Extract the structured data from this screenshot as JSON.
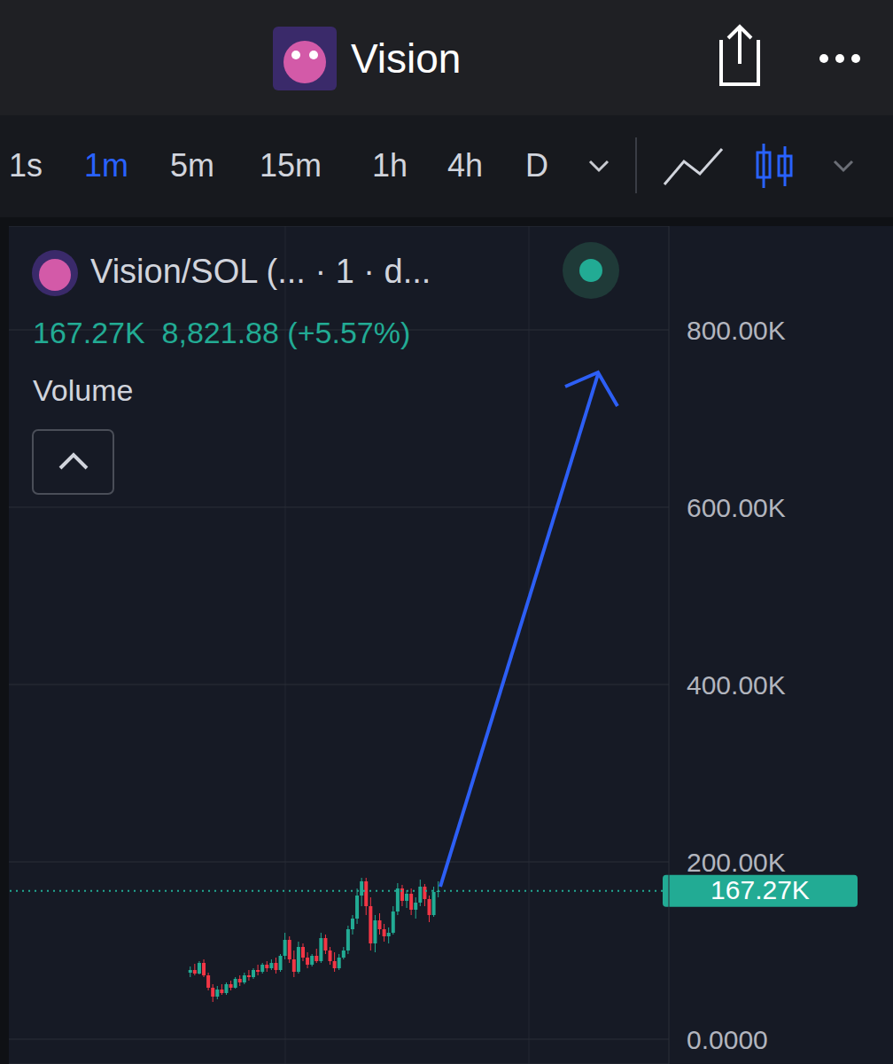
{
  "header": {
    "title": "Vision",
    "timeframes": [
      "1s",
      "1m",
      "5m",
      "15m",
      "1h",
      "4h",
      "D"
    ],
    "active_timeframe": "1m"
  },
  "chart_data": {
    "type": "candlestick",
    "title": "Vision/SOL (... · 1 · d...",
    "legend_values": [
      "167.27K",
      "8,821.88 (+5.57%)"
    ],
    "indicator": "Volume",
    "categories": [
      null,
      null,
      null,
      null,
      null,
      null,
      null,
      null,
      null,
      null,
      null,
      null,
      null,
      null,
      null,
      null,
      null,
      null,
      null,
      null,
      null,
      null,
      null,
      null,
      null,
      null,
      null,
      null,
      null,
      null,
      null,
      null,
      null,
      null,
      null,
      null,
      null,
      null,
      null,
      null,
      null,
      null,
      null,
      null,
      null,
      null,
      null,
      null,
      null,
      null,
      null,
      null,
      null,
      null,
      null,
      null
    ],
    "open": [
      75000,
      78000,
      74000,
      86000,
      72000,
      58000,
      48000,
      56000,
      52000,
      62000,
      58000,
      68000,
      64000,
      72000,
      70000,
      78000,
      76000,
      84000,
      80000,
      86000,
      78000,
      94000,
      112000,
      90000,
      76000,
      104000,
      92000,
      84000,
      94000,
      88000,
      114000,
      100000,
      88000,
      80000,
      92000,
      100000,
      124000,
      136000,
      162000,
      178000,
      150000,
      108000,
      134000,
      124000,
      116000,
      120000,
      144000,
      170000,
      156000,
      164000,
      146000,
      154000,
      172000,
      158000,
      140000,
      166000
    ],
    "high": [
      82000,
      85000,
      88000,
      90000,
      75000,
      62000,
      60000,
      62000,
      64000,
      66000,
      70000,
      72000,
      75000,
      78000,
      80000,
      84000,
      86000,
      88000,
      90000,
      92000,
      96000,
      120000,
      116000,
      100000,
      110000,
      108000,
      98000,
      96000,
      102000,
      120000,
      118000,
      104000,
      98000,
      96000,
      104000,
      128000,
      140000,
      170000,
      182000,
      182000,
      160000,
      140000,
      142000,
      130000,
      126000,
      150000,
      176000,
      174000,
      168000,
      170000,
      160000,
      180000,
      175000,
      162000,
      172000,
      178000
    ],
    "low": [
      70000,
      72000,
      73000,
      70000,
      55000,
      42000,
      45000,
      50000,
      50000,
      55000,
      57000,
      60000,
      62000,
      66000,
      68000,
      72000,
      74000,
      76000,
      78000,
      74000,
      76000,
      90000,
      86000,
      70000,
      74000,
      88000,
      80000,
      82000,
      86000,
      86000,
      96000,
      84000,
      76000,
      78000,
      90000,
      96000,
      118000,
      130000,
      150000,
      140000,
      100000,
      98000,
      118000,
      110000,
      108000,
      118000,
      140000,
      150000,
      148000,
      140000,
      136000,
      150000,
      150000,
      132000,
      138000,
      160000
    ],
    "close": [
      78000,
      74000,
      86000,
      72000,
      58000,
      48000,
      56000,
      52000,
      62000,
      58000,
      68000,
      64000,
      72000,
      70000,
      78000,
      76000,
      84000,
      80000,
      86000,
      78000,
      94000,
      112000,
      90000,
      76000,
      104000,
      92000,
      84000,
      94000,
      88000,
      114000,
      100000,
      88000,
      80000,
      92000,
      100000,
      124000,
      136000,
      162000,
      178000,
      150000,
      108000,
      134000,
      124000,
      116000,
      120000,
      144000,
      170000,
      156000,
      164000,
      146000,
      154000,
      172000,
      158000,
      140000,
      166000,
      167270
    ],
    "colors": [
      "#22ab94",
      "#f23645",
      "#22ab94",
      "#f23645",
      "#f23645",
      "#f23645",
      "#22ab94",
      "#f23645",
      "#22ab94",
      "#f23645",
      "#22ab94",
      "#f23645",
      "#22ab94",
      "#f23645",
      "#22ab94",
      "#f23645",
      "#22ab94",
      "#f23645",
      "#22ab94",
      "#f23645",
      "#22ab94",
      "#22ab94",
      "#f23645",
      "#f23645",
      "#22ab94",
      "#f23645",
      "#f23645",
      "#22ab94",
      "#f23645",
      "#22ab94",
      "#f23645",
      "#f23645",
      "#f23645",
      "#22ab94",
      "#22ab94",
      "#22ab94",
      "#22ab94",
      "#22ab94",
      "#22ab94",
      "#f23645",
      "#f23645",
      "#22ab94",
      "#f23645",
      "#f23645",
      "#22ab94",
      "#22ab94",
      "#22ab94",
      "#f23645",
      "#22ab94",
      "#f23645",
      "#22ab94",
      "#22ab94",
      "#f23645",
      "#f23645",
      "#22ab94",
      "#22ab94"
    ],
    "ylim": [
      -28000,
      917000
    ],
    "yticks": [
      {
        "value": 0,
        "label": "0.0000"
      },
      {
        "value": 200000,
        "label": "200.00K"
      },
      {
        "value": 400000,
        "label": "400.00K"
      },
      {
        "value": 600000,
        "label": "600.00K"
      },
      {
        "value": 800000,
        "label": "800.00K"
      }
    ],
    "grid": true,
    "tick_labels": "y",
    "last_price": {
      "value": 167270,
      "label": "167.27K"
    }
  }
}
